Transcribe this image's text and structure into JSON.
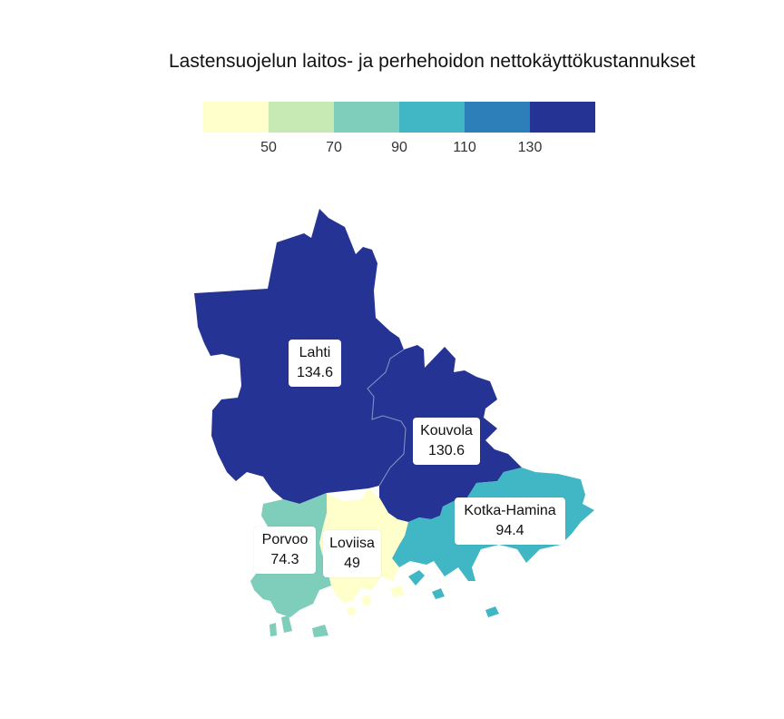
{
  "title": "Lastensuojelun laitos- ja perhehoidon nettokäyttökustannukset",
  "legend": {
    "colors": [
      "#ffffcc",
      "#c7e9b4",
      "#7fcdbb",
      "#41b6c4",
      "#2c7fb8",
      "#253494"
    ],
    "breaks": [
      "50",
      "70",
      "90",
      "110",
      "130"
    ]
  },
  "regions": [
    {
      "id": "lahti",
      "name": "Lahti",
      "value": "134.6",
      "color": "#253494"
    },
    {
      "id": "kouvola",
      "name": "Kouvola",
      "value": "130.6",
      "color": "#253494"
    },
    {
      "id": "kotka-hamina",
      "name": "Kotka-Hamina",
      "value": "94.4",
      "color": "#41b6c4"
    },
    {
      "id": "porvoo",
      "name": "Porvoo",
      "value": "74.3",
      "color": "#7fcdbb"
    },
    {
      "id": "loviisa",
      "name": "Loviisa",
      "value": "49",
      "color": "#ffffcc"
    }
  ]
}
